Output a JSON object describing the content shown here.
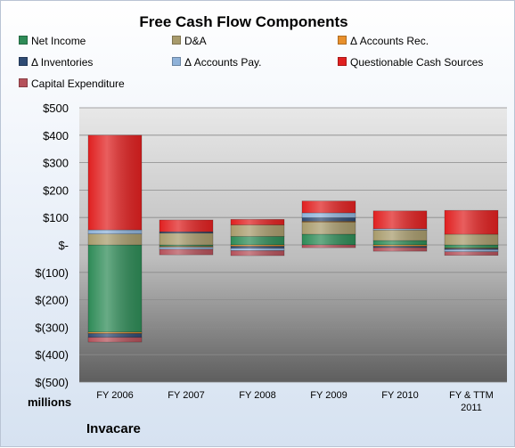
{
  "chart_data": {
    "type": "bar",
    "stacked": true,
    "title": "Free Cash Flow Components",
    "unit_label": "millions",
    "company": "Invacare",
    "categories": [
      "FY 2006",
      "FY 2007",
      "FY 2008",
      "FY 2009",
      "FY 2010",
      "FY & TTM 2011"
    ],
    "ylim": [
      -500,
      500
    ],
    "yticks": [
      500,
      400,
      300,
      200,
      100,
      0,
      -100,
      -200,
      -300,
      -400,
      -500
    ],
    "ytick_labels": [
      "$500",
      "$400",
      "$300",
      "$200",
      "$100",
      "$-",
      "$(100)",
      "$(200)",
      "$(300)",
      "$(400)",
      "$(500)"
    ],
    "grid": true,
    "legend_position": "top",
    "series": [
      {
        "name": "Net Income",
        "color": "#2e8b57",
        "values": [
          -318,
          -5,
          31,
          39,
          16,
          -11
        ]
      },
      {
        "name": "D&A",
        "color": "#a89b6c",
        "values": [
          40,
          43,
          42,
          44,
          38,
          39
        ]
      },
      {
        "name": "Δ Accounts Rec.",
        "color": "#e8902c",
        "values": [
          -5,
          -3,
          -5,
          3,
          -5,
          -2
        ]
      },
      {
        "name": "Δ Inventories",
        "color": "#2f4b74",
        "values": [
          -14,
          5,
          -7,
          13,
          -5,
          -4
        ]
      },
      {
        "name": "Δ Accounts Pay.",
        "color": "#8fb2d9",
        "values": [
          15,
          -8,
          -9,
          18,
          5,
          -8
        ]
      },
      {
        "name": "Questionable Cash Sources",
        "color": "#e02020",
        "values": [
          345,
          43,
          20,
          43,
          65,
          87
        ]
      },
      {
        "name": "Capital Expenditure",
        "color": "#b5515a",
        "values": [
          -17,
          -20,
          -18,
          -10,
          -13,
          -13
        ]
      }
    ]
  }
}
